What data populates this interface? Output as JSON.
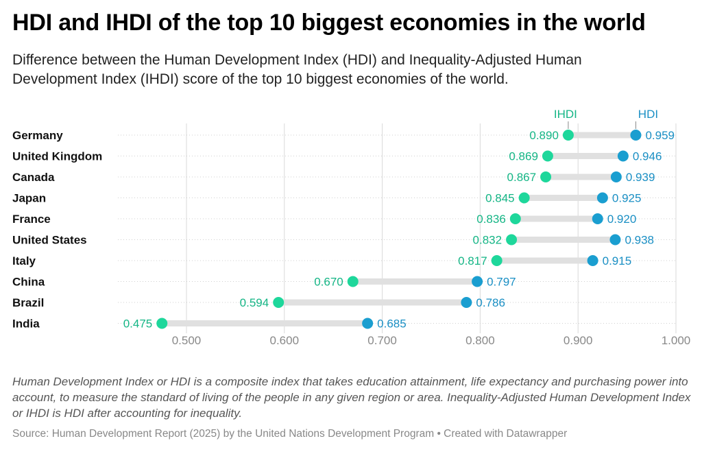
{
  "title": "HDI and IHDI of the top 10 biggest economies in the world",
  "subtitle": "Difference between the Human Development Index (HDI) and Inequality-Adjusted Human Development Index (IHDI) score of the top 10 biggest economies of the world.",
  "note": "Human Development Index or HDI is a composite index that takes education attainment, life expectancy and purchasing power into account, to measure the standard of living of the people in any given region or area. Inequality-Adjusted Human Development Index or IHDI is HDI after accounting for inequality.",
  "source": "Source: Human Development Report (2025) by the United Nations Development Program • Created with Datawrapper",
  "colors": {
    "ihdi": "#1ed79b",
    "hdi": "#1a9ed0",
    "ihdi_text": "#14b585",
    "hdi_text": "#1a8fc4",
    "connector": "#e0e0e0",
    "grid": "#d9d9d9"
  },
  "chart_data": {
    "type": "dot-range",
    "xlim": [
      0.43,
      1.0
    ],
    "ticks": [
      "0.500",
      "0.600",
      "0.700",
      "0.800",
      "0.900",
      "1.000"
    ],
    "tick_values": [
      0.5,
      0.6,
      0.7,
      0.8,
      0.9,
      1.0
    ],
    "series": [
      {
        "name": "IHDI",
        "key": "ihdi"
      },
      {
        "name": "HDI",
        "key": "hdi"
      }
    ],
    "rows": [
      {
        "country": "Germany",
        "ihdi": 0.89,
        "hdi": 0.959,
        "ihdi_label": "0.890",
        "hdi_label": "0.959"
      },
      {
        "country": "United Kingdom",
        "ihdi": 0.869,
        "hdi": 0.946,
        "ihdi_label": "0.869",
        "hdi_label": "0.946"
      },
      {
        "country": "Canada",
        "ihdi": 0.867,
        "hdi": 0.939,
        "ihdi_label": "0.867",
        "hdi_label": "0.939"
      },
      {
        "country": "Japan",
        "ihdi": 0.845,
        "hdi": 0.925,
        "ihdi_label": "0.845",
        "hdi_label": "0.925"
      },
      {
        "country": "France",
        "ihdi": 0.836,
        "hdi": 0.92,
        "ihdi_label": "0.836",
        "hdi_label": "0.920"
      },
      {
        "country": "United States",
        "ihdi": 0.832,
        "hdi": 0.938,
        "ihdi_label": "0.832",
        "hdi_label": "0.938"
      },
      {
        "country": "Italy",
        "ihdi": 0.817,
        "hdi": 0.915,
        "ihdi_label": "0.817",
        "hdi_label": "0.915"
      },
      {
        "country": "China",
        "ihdi": 0.67,
        "hdi": 0.797,
        "ihdi_label": "0.670",
        "hdi_label": "0.797"
      },
      {
        "country": "Brazil",
        "ihdi": 0.594,
        "hdi": 0.786,
        "ihdi_label": "0.594",
        "hdi_label": "0.786"
      },
      {
        "country": "India",
        "ihdi": 0.475,
        "hdi": 0.685,
        "ihdi_label": "0.475",
        "hdi_label": "0.685"
      }
    ]
  }
}
